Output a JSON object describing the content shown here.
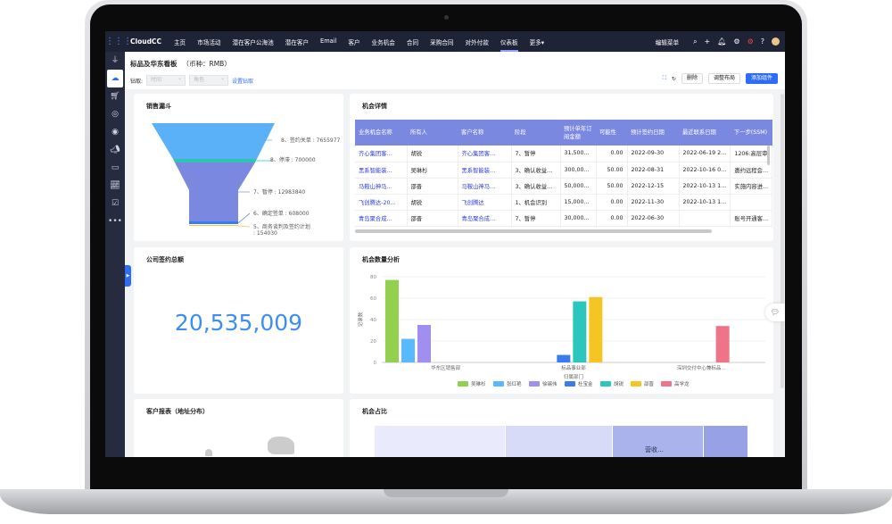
{
  "nav": {
    "brand": "CloudCC",
    "items": [
      "主页",
      "市场活动",
      "潜在客户公海池",
      "潜在客户",
      "Email",
      "客户",
      "业务机会",
      "合同",
      "采购合同",
      "对外付款",
      "仪表板",
      "更多▾"
    ],
    "active": "仪表板",
    "edit_menu": "编辑菜单"
  },
  "header": {
    "title": "标品及华东看板",
    "currency": "（币种：RMB）",
    "drill_label": "钻取:",
    "drill_time": "时间",
    "drill_role": "角色",
    "set_drill": "设置钻取",
    "delete": "删除",
    "adjust_layout": "调整布局",
    "add_component": "添加组件"
  },
  "funnel": {
    "title": "销售漏斗",
    "stages": [
      {
        "label": "8、签约关单 : 7655977",
        "color": "#5ab1f7"
      },
      {
        "label": "8、停滞 : 700000",
        "color": "#2fc4b2"
      },
      {
        "label": "7、暂停 : 12983840",
        "color": "#7b88e0"
      },
      {
        "label": "6、确定签单 : 608000",
        "color": "#3a7bef"
      },
      {
        "label": "5、商务谈判及签约计划",
        "label2": ": 154030",
        "color": "#f5c842"
      }
    ]
  },
  "table": {
    "title": "机会详情",
    "columns": [
      "业务机会名称",
      "所有人",
      "客户名称",
      "阶段",
      "预计单年订阅金额",
      "可能性",
      "预计签约日期",
      "最近联系日期",
      "下一步(SSM)"
    ],
    "rows": [
      [
        "齐心集团客…",
        "胡锐",
        "齐心集团客…",
        "7、暂停",
        "31,500…",
        "0.00",
        "2022-09-30",
        "2022-06-19 2…",
        "1206:高层审"
      ],
      [
        "黑系智能装…",
        "吴琳杉",
        "黑系智能装…",
        "3、确认收益…",
        "300,00…",
        "50.00",
        "2022-08-31",
        "2022-10-16 0…",
        "邀约远程会…"
      ],
      [
        "马鞍山神马…",
        "邵晋",
        "马鞍山神马…",
        "3、确认收益…",
        "50,000…",
        "50.00",
        "2022-12-15",
        "2022-10-13 1…",
        "实施内容进…"
      ],
      [
        "飞创腾达-20…",
        "胡锐",
        "飞创腾达",
        "1、机会识别",
        "15,000…",
        "0.00",
        "2022-11-30",
        "2022-10-13 1…",
        ""
      ],
      [
        "青岛聚合成…",
        "邵晋",
        "青岛聚合成…",
        "7、暂停",
        "30,000…",
        "0.00",
        "2022-06-30",
        "",
        "账号开通客…"
      ]
    ]
  },
  "total": {
    "title": "公司签约总额",
    "value": "20,535,009"
  },
  "chart_data": {
    "type": "bar",
    "title": "机会数量分析",
    "xlabel": "归属部门",
    "ylabel": "记录数",
    "ylim": [
      0,
      80
    ],
    "yticks": [
      0,
      20,
      40,
      60,
      80
    ],
    "grid": true,
    "legend": "bottom",
    "categories": [
      "华东区销售部",
      "标品事业部",
      "深圳交付中心兼标品…"
    ],
    "series": [
      {
        "name": "吴琳杉",
        "color": "#92d050",
        "values": [
          77,
          null,
          null
        ]
      },
      {
        "name": "张红艳",
        "color": "#5ab8ff",
        "values": [
          22,
          null,
          null
        ]
      },
      {
        "name": "徐锡伟",
        "color": "#a08ff0",
        "values": [
          35,
          null,
          null
        ]
      },
      {
        "name": "杜宝金",
        "color": "#3a7bef",
        "values": [
          null,
          7,
          null
        ]
      },
      {
        "name": "胡锐",
        "color": "#2cc6bd",
        "values": [
          null,
          57,
          null
        ]
      },
      {
        "name": "邵晋",
        "color": "#f5c623",
        "values": [
          null,
          61,
          null
        ]
      },
      {
        "name": "高学龙",
        "color": "#f07487",
        "values": [
          null,
          null,
          34
        ]
      }
    ]
  },
  "map": {
    "title": "客户报表（地址分布）"
  },
  "share": {
    "title": "机会占比",
    "segment_label": "营收…"
  }
}
